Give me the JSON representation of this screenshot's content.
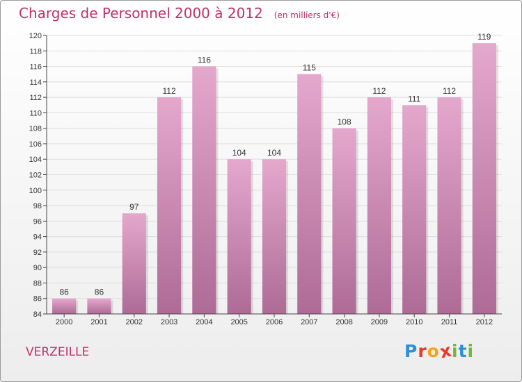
{
  "title": "Charges de Personnel 2000 à 2012",
  "title_unit": "(en milliers d'€)",
  "place": "VERZEILLE",
  "logo": {
    "text": "Proxiti",
    "letters": [
      {
        "ch": "P",
        "color": "#2d8fd6"
      },
      {
        "ch": "r",
        "color": "#e8392c"
      },
      {
        "ch": "o",
        "color": "#f3a21b"
      },
      {
        "ch": "x",
        "color": "#e8392c"
      },
      {
        "ch": "i",
        "color": "#73b739"
      },
      {
        "ch": "t",
        "color": "#2d8fd6"
      },
      {
        "ch": "i",
        "color": "#73b739"
      }
    ]
  },
  "colors": {
    "title": "#c0306a",
    "bar_top": "#e5a8cd",
    "bar_bottom": "#ad6b95",
    "grid": "#dddddd",
    "axis": "#444444"
  },
  "chart_data": {
    "type": "bar",
    "title": "Charges de Personnel 2000 à 2012",
    "categories": [
      "2000",
      "2001",
      "2002",
      "2003",
      "2004",
      "2005",
      "2006",
      "2007",
      "2008",
      "2009",
      "2010",
      "2011",
      "2012"
    ],
    "values": [
      86,
      86,
      97,
      112,
      116,
      104,
      104,
      115,
      108,
      112,
      111,
      112,
      119
    ],
    "ylim": [
      84,
      120
    ],
    "yticks": [
      84,
      86,
      88,
      90,
      92,
      94,
      96,
      98,
      100,
      102,
      104,
      106,
      108,
      110,
      112,
      114,
      116,
      118,
      120
    ],
    "grid": true,
    "legend": "none"
  }
}
